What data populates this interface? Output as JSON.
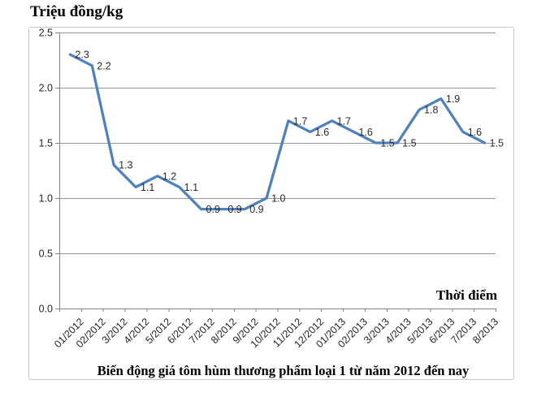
{
  "chart_data": {
    "type": "line",
    "title": "Biến động giá tôm hùm thương phẩm loại 1 từ năm 2012 đến nay",
    "ylabel": "Triệu đồng/kg",
    "xlabel": "Thời điểm",
    "categories": [
      "01/2012",
      "02/2012",
      "3/2012",
      "4/2012",
      "5/2012",
      "6/2012",
      "7/2012",
      "8/2012",
      "9/2012",
      "10/2012",
      "11/2012",
      "12/2012",
      "01/2013",
      "02/2013",
      "3/2013",
      "4/2013",
      "5/2013",
      "6/2013",
      "7/2013",
      "8/2013"
    ],
    "values": [
      2.3,
      2.2,
      1.3,
      1.1,
      1.2,
      1.1,
      0.9,
      0.9,
      0.9,
      1.0,
      1.7,
      1.6,
      1.7,
      1.6,
      1.5,
      1.5,
      1.8,
      1.9,
      1.6,
      1.5
    ],
    "data_labels": [
      "2.3",
      "2.2",
      "1.3",
      "1.1",
      "1.2",
      "1.1",
      "0.9",
      "0.9",
      "0.9",
      "1.0",
      "1.7",
      "1.6",
      "1.7",
      "1.6",
      "1.5",
      "1.5",
      "1.8",
      "1.9",
      "1.6",
      "1.5"
    ],
    "ylim": [
      0.0,
      2.5
    ],
    "ytick_labels": [
      "2.5",
      "2.0",
      "1.5",
      "1.0",
      "0.5",
      "0.0"
    ],
    "grid": true,
    "legend": "none",
    "colors": {
      "line": "#4F81BD",
      "gridline": "#969696",
      "axis": "#848484",
      "tick_text": "#262626",
      "frame_border": "#C7C9D2"
    }
  }
}
